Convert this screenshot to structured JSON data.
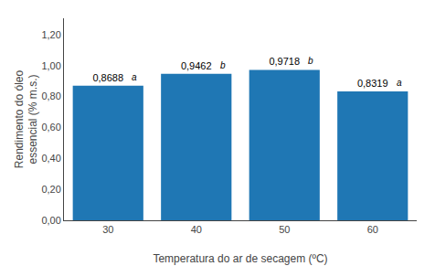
{
  "chart_data": {
    "type": "bar",
    "categories": [
      "30",
      "40",
      "50",
      "60"
    ],
    "values": [
      0.8688,
      0.9462,
      0.9718,
      0.8319
    ],
    "value_labels": [
      "0,8688",
      "0,9462",
      "0,9718",
      "0,8319"
    ],
    "data_labels": true,
    "annotations": [
      "a",
      "b",
      "b",
      "a"
    ],
    "xlabel": "Temperatura do ar de secagem (ºC)",
    "ylabel": "Rendimento do óleo\nessencial (% m.s.)",
    "ylim": [
      0.0,
      1.305
    ],
    "yticks": [
      {
        "value": 0.0,
        "label": "0,00"
      },
      {
        "value": 0.2,
        "label": "0,20"
      },
      {
        "value": 0.4,
        "label": "0,40"
      },
      {
        "value": 0.6,
        "label": "0,60"
      },
      {
        "value": 0.8,
        "label": "0,80"
      },
      {
        "value": 1.0,
        "label": "1,00"
      },
      {
        "value": 1.2,
        "label": "1,20"
      }
    ],
    "grid": false
  }
}
